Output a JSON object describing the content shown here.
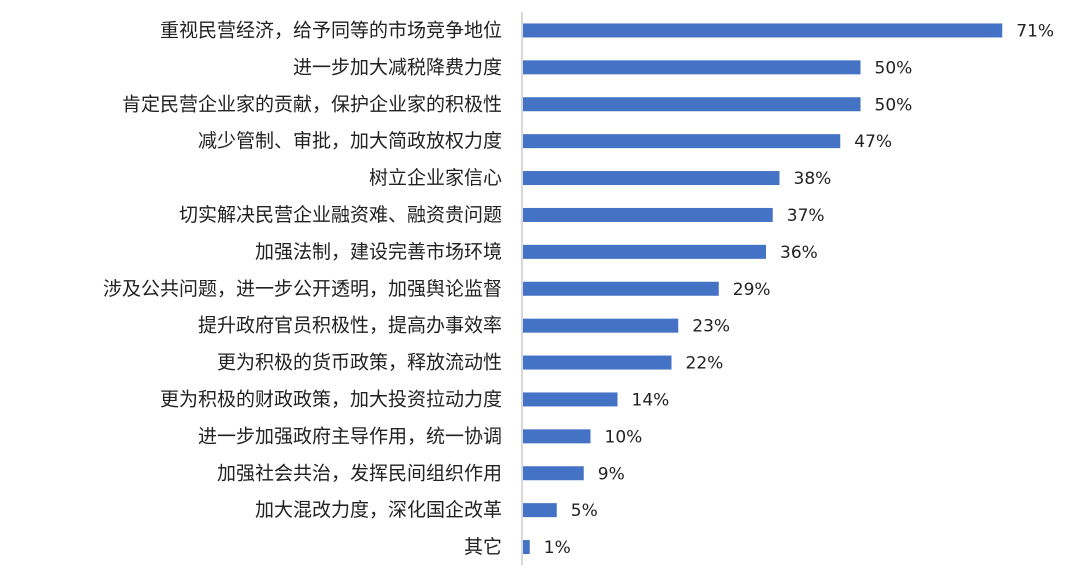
{
  "chart_data": {
    "type": "bar",
    "orientation": "horizontal",
    "categories": [
      "重视民营经济，给予同等的市场竞争地位",
      "进一步加大减税降费力度",
      "肯定民营企业家的贡献，保护企业家的积极性",
      "减少管制、审批，加大简政放权力度",
      "树立企业家信心",
      "切实解决民营企业融资难、融资贵问题",
      "加强法制，建设完善市场环境",
      "涉及公共问题，进一步公开透明，加强舆论监督",
      "提升政府官员积极性，提高办事效率",
      "更为积极的货币政策，释放流动性",
      "更为积极的财政政策，加大投资拉动力度",
      "进一步加强政府主导作用，统一协调",
      "加强社会共治，发挥民间组织作用",
      "加大混改力度，深化国企改革",
      "其它"
    ],
    "values": [
      71,
      50,
      50,
      47,
      38,
      37,
      36,
      29,
      23,
      22,
      14,
      10,
      9,
      5,
      1
    ],
    "value_labels": [
      "71%",
      "50%",
      "50%",
      "47%",
      "38%",
      "37%",
      "36%",
      "29%",
      "23%",
      "22%",
      "14%",
      "10%",
      "9%",
      "5%",
      "1%"
    ],
    "unit": "%",
    "xlim": [
      0,
      100
    ],
    "grid": false,
    "legend": "none",
    "colors": {
      "bar": "#4472C4",
      "axis": "#BFBFBF",
      "text": "#222222"
    }
  }
}
